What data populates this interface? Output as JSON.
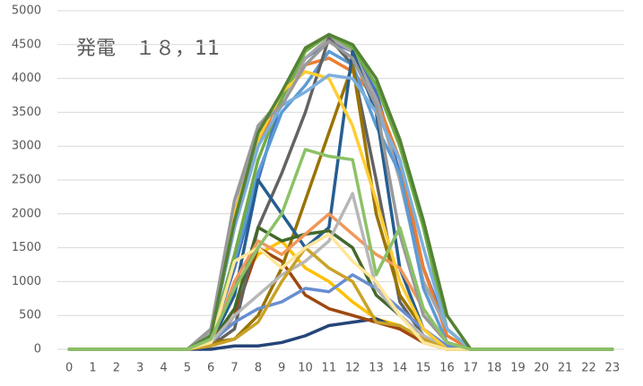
{
  "chart_data": {
    "type": "line",
    "title": "発電　１８，11",
    "x": [
      0,
      1,
      2,
      3,
      4,
      5,
      6,
      7,
      8,
      9,
      10,
      11,
      12,
      13,
      14,
      15,
      16,
      17,
      18,
      19,
      20,
      21,
      22,
      23
    ],
    "xticks": [
      0,
      1,
      2,
      3,
      4,
      5,
      6,
      7,
      8,
      9,
      10,
      11,
      12,
      13,
      14,
      15,
      16,
      17,
      18,
      19,
      20,
      21,
      22,
      23
    ],
    "xlim": [
      -0.5,
      23.5
    ],
    "ylim": [
      0,
      5000
    ],
    "yticks": [
      0,
      500,
      1000,
      1500,
      2000,
      2500,
      3000,
      3500,
      4000,
      4500,
      5000
    ],
    "grid": true,
    "series": [
      {
        "color": "#4472c4",
        "values": [
          0,
          0,
          0,
          0,
          0,
          0,
          150,
          1200,
          2500,
          3700,
          4300,
          4550,
          4400,
          3800,
          2600,
          1200,
          300,
          0,
          0,
          0,
          0,
          0,
          0,
          0
        ]
      },
      {
        "color": "#ed7d31",
        "values": [
          0,
          0,
          0,
          0,
          0,
          0,
          200,
          1800,
          3000,
          3800,
          4200,
          4300,
          4100,
          3700,
          2800,
          1200,
          200,
          0,
          0,
          0,
          0,
          0,
          0,
          0
        ]
      },
      {
        "color": "#a5a5a5",
        "values": [
          0,
          0,
          0,
          0,
          0,
          0,
          250,
          2000,
          3300,
          3700,
          4300,
          4600,
          4400,
          3700,
          2500,
          1000,
          300,
          0,
          0,
          0,
          0,
          0,
          0,
          0
        ]
      },
      {
        "color": "#ffc000",
        "values": [
          0,
          0,
          0,
          0,
          0,
          0,
          100,
          900,
          1400,
          1600,
          1200,
          1000,
          700,
          450,
          350,
          100,
          0,
          0,
          0,
          0,
          0,
          0,
          0,
          0
        ]
      },
      {
        "color": "#5b9bd5",
        "values": [
          0,
          0,
          0,
          0,
          0,
          0,
          200,
          1300,
          2600,
          3500,
          3900,
          4400,
          4200,
          3300,
          2600,
          900,
          100,
          0,
          0,
          0,
          0,
          0,
          0,
          0
        ]
      },
      {
        "color": "#70ad47",
        "values": [
          0,
          0,
          0,
          0,
          0,
          0,
          150,
          1400,
          2800,
          3700,
          4400,
          4650,
          4450,
          3900,
          3000,
          1800,
          300,
          0,
          0,
          0,
          0,
          0,
          0,
          0
        ]
      },
      {
        "color": "#264478",
        "values": [
          0,
          0,
          0,
          0,
          0,
          0,
          0,
          50,
          50,
          100,
          200,
          350,
          400,
          450,
          300,
          150,
          50,
          0,
          0,
          0,
          0,
          0,
          0,
          0
        ]
      },
      {
        "color": "#9e480e",
        "values": [
          0,
          0,
          0,
          0,
          0,
          0,
          50,
          500,
          1500,
          1300,
          800,
          600,
          500,
          400,
          300,
          100,
          0,
          0,
          0,
          0,
          0,
          0,
          0,
          0
        ]
      },
      {
        "color": "#636363",
        "values": [
          0,
          0,
          0,
          0,
          0,
          0,
          50,
          300,
          1800,
          2600,
          3500,
          4600,
          4200,
          2500,
          700,
          200,
          0,
          0,
          0,
          0,
          0,
          0,
          0,
          0
        ]
      },
      {
        "color": "#997300",
        "values": [
          0,
          0,
          0,
          0,
          0,
          0,
          100,
          150,
          500,
          1200,
          2200,
          3200,
          4200,
          2000,
          800,
          300,
          0,
          0,
          0,
          0,
          0,
          0,
          0,
          0
        ]
      },
      {
        "color": "#255e91",
        "values": [
          0,
          0,
          0,
          0,
          0,
          0,
          100,
          800,
          2500,
          2000,
          1500,
          1800,
          4400,
          3500,
          1200,
          300,
          0,
          0,
          0,
          0,
          0,
          0,
          0,
          0
        ]
      },
      {
        "color": "#43682b",
        "values": [
          0,
          0,
          0,
          0,
          0,
          0,
          100,
          600,
          1800,
          1600,
          1700,
          1750,
          1500,
          800,
          500,
          200,
          0,
          0,
          0,
          0,
          0,
          0,
          0,
          0
        ]
      },
      {
        "color": "#698ed0",
        "values": [
          0,
          0,
          0,
          0,
          0,
          0,
          100,
          400,
          600,
          700,
          900,
          850,
          1100,
          900,
          600,
          300,
          50,
          0,
          0,
          0,
          0,
          0,
          0,
          0
        ]
      },
      {
        "color": "#f1975a",
        "values": [
          0,
          0,
          0,
          0,
          0,
          0,
          100,
          1000,
          1600,
          1400,
          1700,
          2000,
          1700,
          1400,
          1200,
          600,
          100,
          0,
          0,
          0,
          0,
          0,
          0,
          0
        ]
      },
      {
        "color": "#b7b7b7",
        "values": [
          0,
          0,
          0,
          0,
          0,
          0,
          100,
          500,
          800,
          1100,
          1300,
          1600,
          2300,
          900,
          500,
          200,
          0,
          0,
          0,
          0,
          0,
          0,
          0,
          0
        ]
      },
      {
        "color": "#ffcd33",
        "values": [
          0,
          0,
          0,
          0,
          0,
          0,
          150,
          2000,
          3100,
          3800,
          4100,
          4000,
          3300,
          2200,
          1000,
          300,
          0,
          0,
          0,
          0,
          0,
          0,
          0,
          0
        ]
      },
      {
        "color": "#7cafdd",
        "values": [
          0,
          0,
          0,
          0,
          0,
          0,
          200,
          1800,
          3000,
          3600,
          3800,
          4050,
          4000,
          3500,
          2800,
          1500,
          300,
          0,
          0,
          0,
          0,
          0,
          0,
          0
        ]
      },
      {
        "color": "#c9a227",
        "values": [
          0,
          0,
          0,
          0,
          0,
          0,
          50,
          150,
          400,
          1000,
          1500,
          1200,
          1000,
          400,
          350,
          150,
          0,
          0,
          0,
          0,
          0,
          0,
          0,
          0
        ]
      },
      {
        "color": "#ffe699",
        "values": [
          0,
          0,
          0,
          0,
          0,
          0,
          100,
          1300,
          1500,
          1200,
          1500,
          1700,
          1300,
          1000,
          500,
          100,
          0,
          0,
          0,
          0,
          0,
          0,
          0,
          0
        ]
      },
      {
        "color": "#999999",
        "values": [
          0,
          0,
          0,
          0,
          0,
          0,
          300,
          2200,
          3300,
          3600,
          4200,
          4550,
          4300,
          3600,
          1700,
          500,
          100,
          0,
          0,
          0,
          0,
          0,
          0,
          0
        ]
      },
      {
        "color": "#548235",
        "values": [
          0,
          0,
          0,
          0,
          0,
          0,
          200,
          1900,
          3200,
          3800,
          4450,
          4650,
          4500,
          4000,
          3100,
          1900,
          500,
          0,
          0,
          0,
          0,
          0,
          0,
          0
        ]
      },
      {
        "color": "#8cc168",
        "values": [
          0,
          0,
          0,
          0,
          0,
          0,
          150,
          900,
          1500,
          2000,
          2950,
          2850,
          2800,
          1100,
          1800,
          600,
          100,
          0,
          0,
          0,
          0,
          0,
          0,
          0
        ]
      }
    ]
  }
}
